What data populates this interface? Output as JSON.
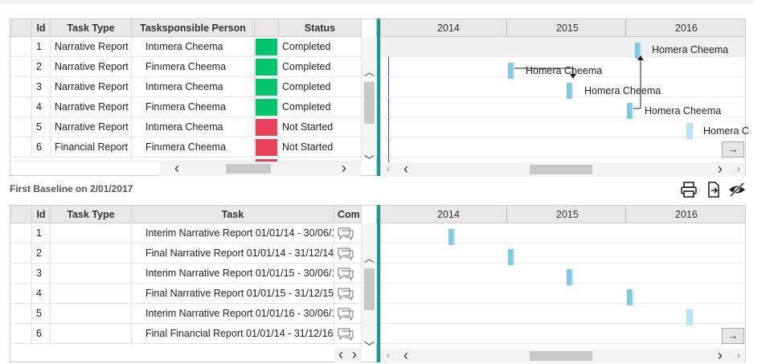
{
  "top_grid": {
    "columns": [
      "Id",
      "Task Type",
      "Tasksponsible Person",
      "Status"
    ],
    "rows": [
      {
        "id": "1",
        "type": "Narrative Report",
        "person": "Intımera Cheema",
        "status": "Completed",
        "color": "#05c46b"
      },
      {
        "id": "2",
        "type": "Narrative Report",
        "person": "Finımera Cheema",
        "status": "Completed",
        "color": "#05c46b"
      },
      {
        "id": "3",
        "type": "Narrative Report",
        "person": "Intımera Cheema",
        "status": "Completed",
        "color": "#05c46b"
      },
      {
        "id": "4",
        "type": "Narrative Report",
        "person": "Finımera Cheema",
        "status": "Completed",
        "color": "#05c46b"
      },
      {
        "id": "5",
        "type": "Narrative Report",
        "person": "Intımera Cheema",
        "status": "Not Started",
        "color": "#e8435a"
      },
      {
        "id": "6",
        "type": "Financial Report",
        "person": "Finımera Cheema",
        "status": "Not Started",
        "color": "#e8435a"
      }
    ]
  },
  "top_gantt": {
    "years": [
      "2014",
      "2015",
      "2016"
    ],
    "labels": [
      "Homera Cheema",
      "Homera Cheema",
      "Homera Cheema",
      "Homera Cheema",
      "Homera C"
    ]
  },
  "baseline": {
    "title": "First Baseline on 2/01/2017"
  },
  "toolbar": {
    "print_icon": "printer-icon",
    "export_icon": "export-icon",
    "hide_icon": "eye-slash-icon"
  },
  "bottom_grid": {
    "columns": [
      "Id",
      "Task Type",
      "Task",
      "Com"
    ],
    "rows": [
      {
        "id": "1",
        "type": "",
        "task": "Interim Narrative Report 01/01/14 - 30/06/1"
      },
      {
        "id": "2",
        "type": "",
        "task": "Final Narrative Report 01/01/14 - 31/12/14"
      },
      {
        "id": "3",
        "type": "",
        "task": "Interim Narrative Report 01/01/15 - 30/06/1"
      },
      {
        "id": "4",
        "type": "",
        "task": "Final Narrative Report 01/01/15 - 31/12/15"
      },
      {
        "id": "5",
        "type": "",
        "task": "Interim Narrative Report 01/01/16 - 30/06/1"
      },
      {
        "id": "6",
        "type": "",
        "task": "Final Financial Report 01/01/14 - 31/12/16"
      }
    ]
  },
  "bottom_gantt": {
    "years": [
      "2014",
      "2015",
      "2016"
    ]
  },
  "nav": {
    "forward_arrow": "→",
    "left": "‹",
    "right": "›"
  }
}
